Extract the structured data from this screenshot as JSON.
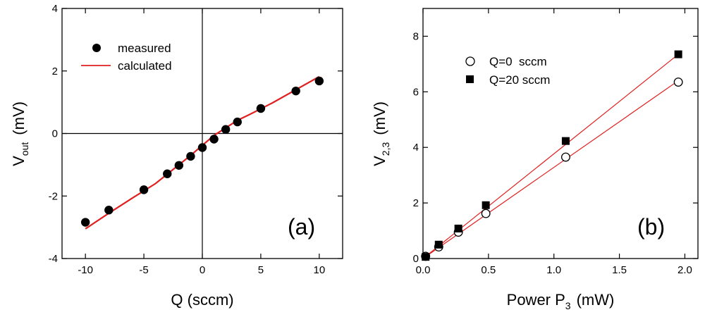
{
  "chart_data": [
    {
      "type": "scatter",
      "panel_label": "(a)",
      "xlabel": "Q (sccm)",
      "ylabel_main": "V",
      "ylabel_sub": "out",
      "ylabel_unit": "(mV)",
      "xlim": [
        -12,
        12
      ],
      "ylim": [
        -4,
        4
      ],
      "xticks": [
        -10,
        -5,
        0,
        5,
        10
      ],
      "yticks": [
        -4,
        -2,
        0,
        2,
        4
      ],
      "xtick_labels": [
        "-10",
        "-5",
        "0",
        "5",
        "10"
      ],
      "ytick_labels": [
        "-4",
        "-2",
        "0",
        "2",
        "4"
      ],
      "zero_lines": true,
      "legend_position": "top-left",
      "series": [
        {
          "name": "measured",
          "kind": "points",
          "marker": "filled-circle",
          "color": "#000000",
          "x": [
            -10,
            -8,
            -5,
            -3,
            -2,
            -1,
            0,
            1,
            2,
            3,
            5,
            8,
            10
          ],
          "y": [
            -2.84,
            -2.45,
            -1.8,
            -1.29,
            -1.02,
            -0.73,
            -0.45,
            -0.18,
            0.13,
            0.37,
            0.8,
            1.36,
            1.68
          ]
        },
        {
          "name": "calculated",
          "kind": "line",
          "color": "#e02020",
          "x": [
            -10,
            -8,
            -6,
            -4,
            -2,
            -1,
            0,
            1,
            2,
            3,
            4,
            6,
            8,
            10
          ],
          "y": [
            -3.05,
            -2.55,
            -2.07,
            -1.6,
            -1.0,
            -0.7,
            -0.38,
            -0.06,
            0.18,
            0.42,
            0.6,
            0.98,
            1.4,
            1.82
          ]
        }
      ]
    },
    {
      "type": "scatter",
      "panel_label": "(b)",
      "xlabel_main": "Power P",
      "xlabel_sub": "3",
      "xlabel_unit": "(mW)",
      "ylabel_main": "V",
      "ylabel_sub": "2,3",
      "ylabel_unit": "(mV)",
      "xlim": [
        0,
        2.1
      ],
      "ylim": [
        0,
        9
      ],
      "xticks": [
        0,
        0.5,
        1,
        1.5,
        2
      ],
      "yticks": [
        0,
        2,
        4,
        6,
        8
      ],
      "xtick_labels": [
        "0.0",
        "0.5",
        "1.0",
        "1.5",
        "2.0"
      ],
      "ytick_labels": [
        "0",
        "2",
        "4",
        "6",
        "8"
      ],
      "legend_position": "top-left",
      "series": [
        {
          "name": "Q=0  sccm",
          "marker": "open-circle",
          "color": "#000000",
          "x": [
            0.02,
            0.12,
            0.27,
            0.48,
            1.09,
            1.95
          ],
          "y": [
            0.08,
            0.42,
            0.95,
            1.62,
            3.65,
            6.35
          ],
          "fit": {
            "color": "#e02020",
            "x": [
              0,
              1.95
            ],
            "y": [
              0.0,
              6.4
            ]
          }
        },
        {
          "name": "Q=20 sccm",
          "marker": "filled-square",
          "color": "#000000",
          "x": [
            0.02,
            0.12,
            0.27,
            0.48,
            1.09,
            1.95
          ],
          "y": [
            0.06,
            0.5,
            1.08,
            1.92,
            4.23,
            7.35
          ],
          "fit": {
            "color": "#e02020",
            "x": [
              0,
              1.95
            ],
            "y": [
              0.0,
              7.35
            ]
          }
        }
      ]
    }
  ]
}
